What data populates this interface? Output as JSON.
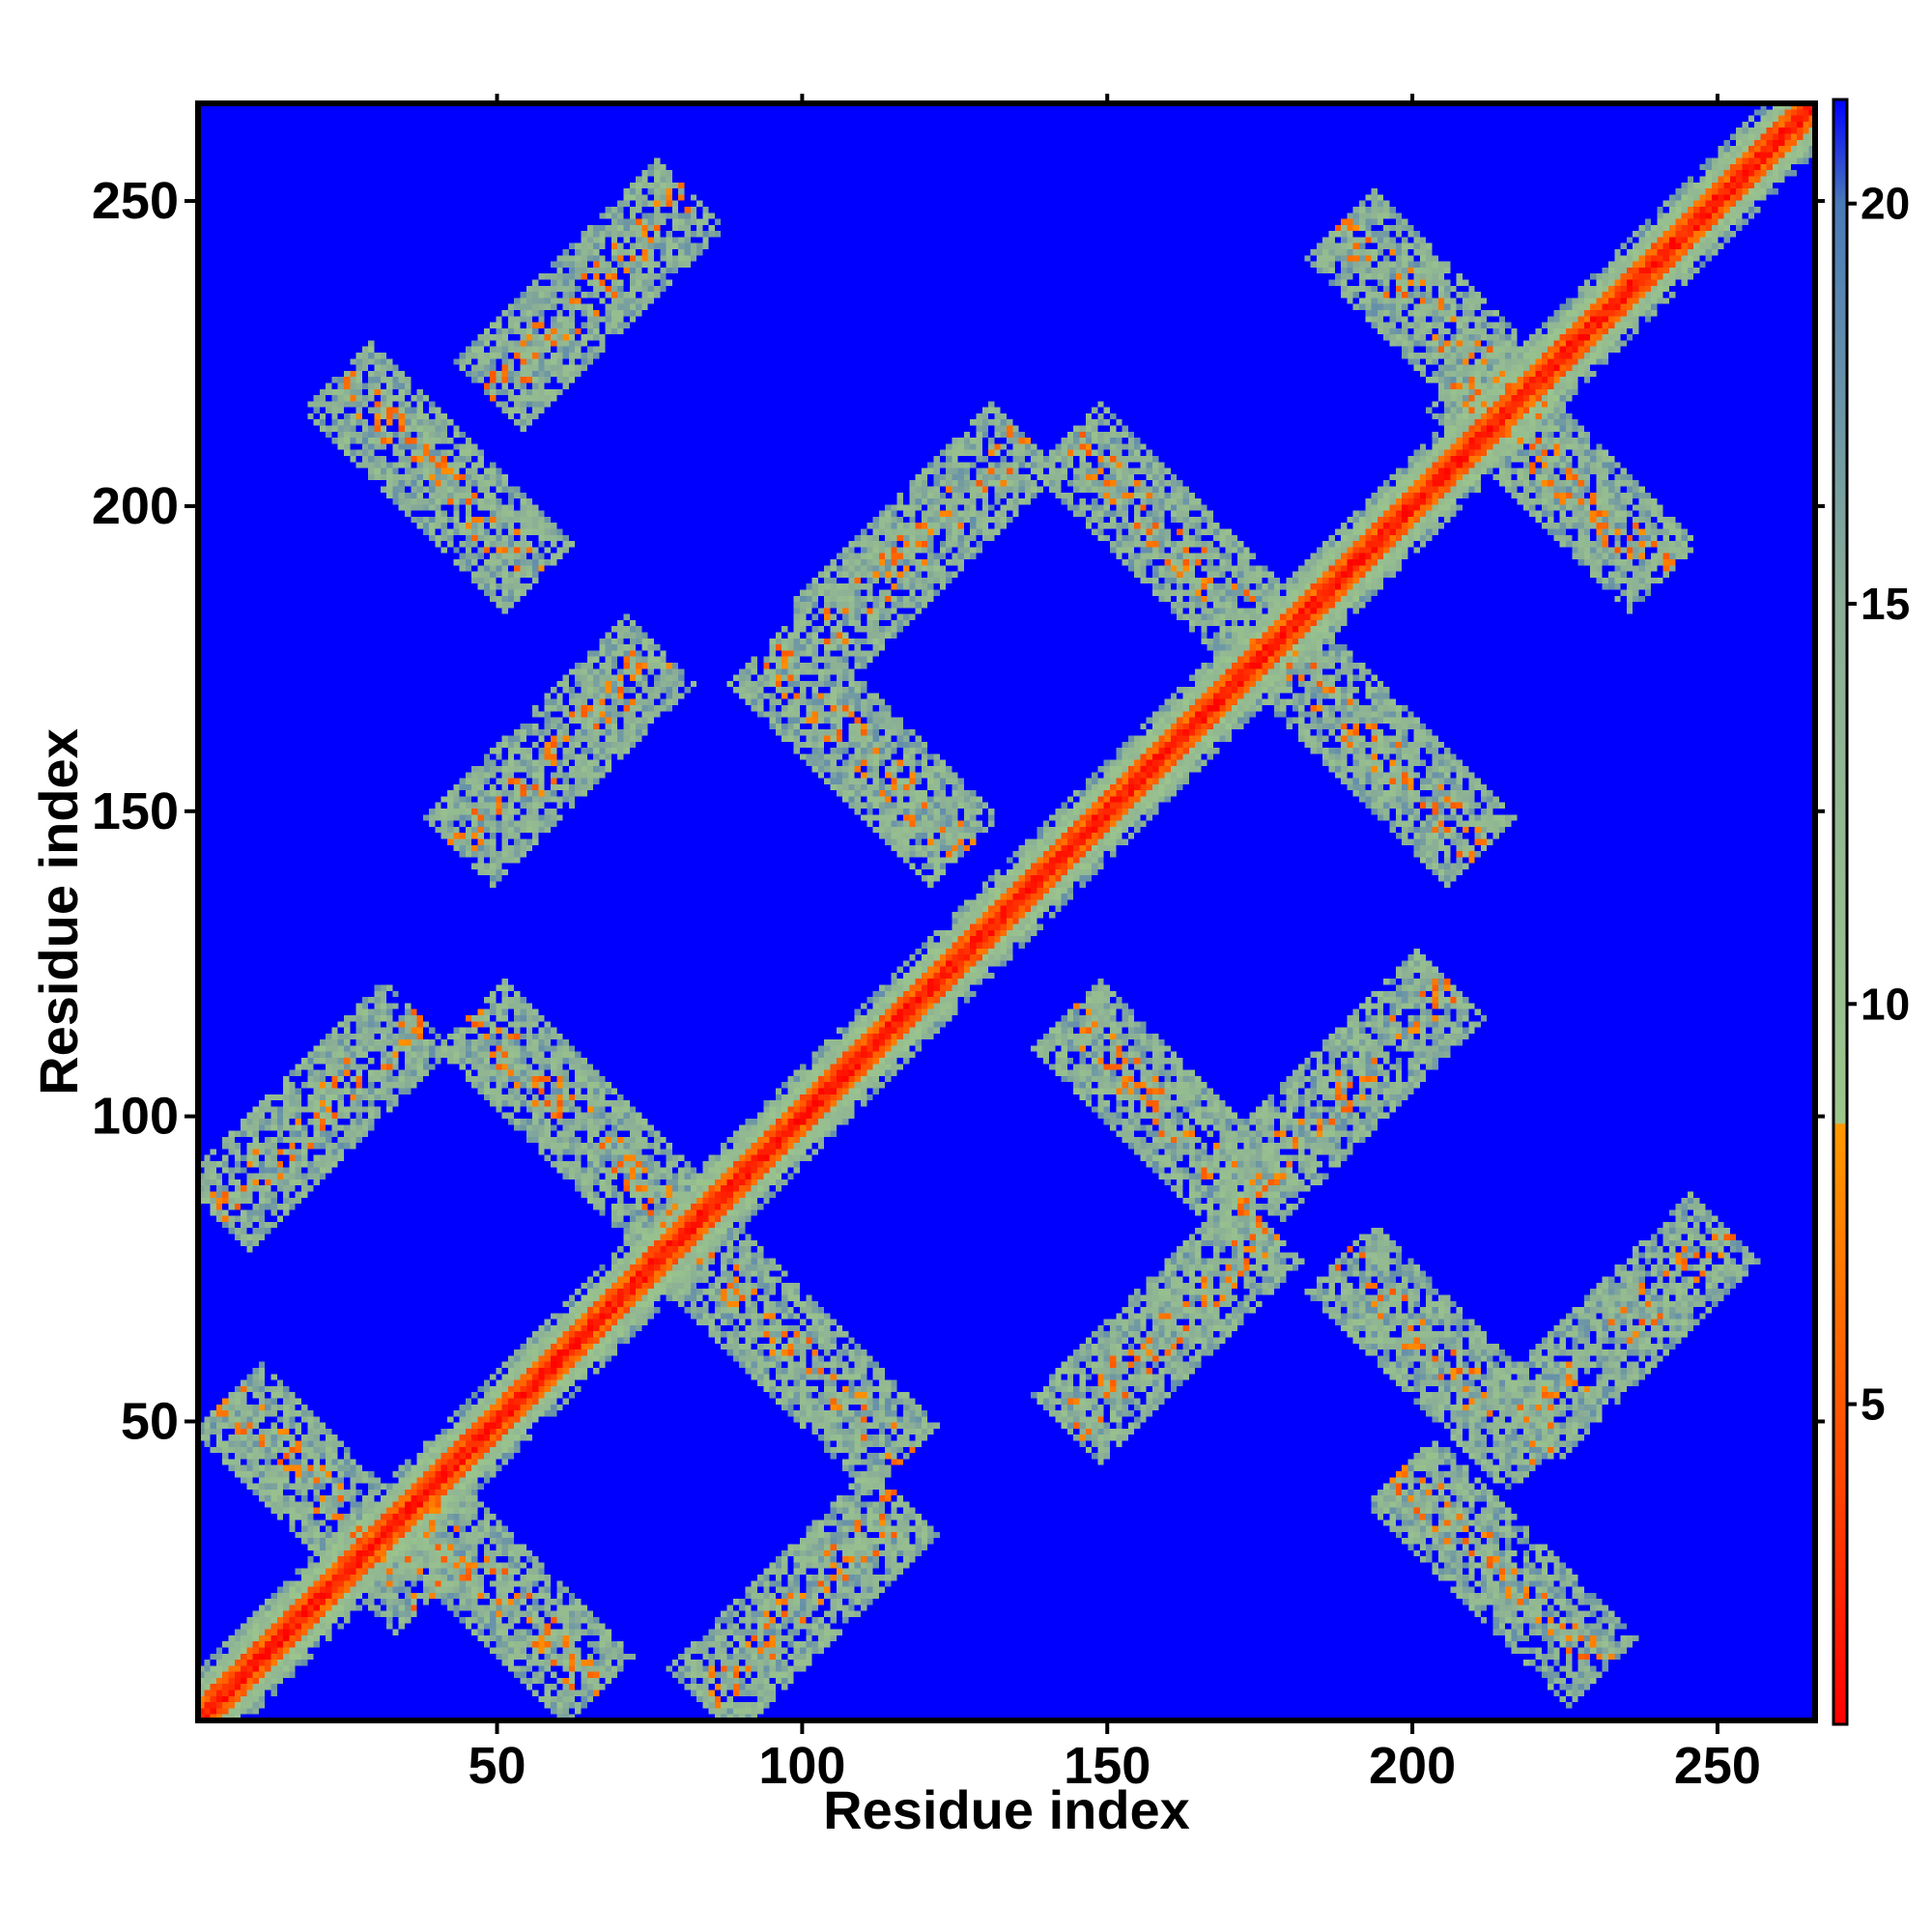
{
  "chart_data": {
    "type": "heatmap",
    "title": "",
    "xlabel": "Residue index",
    "ylabel": "Residue index",
    "xlim": [
      1,
      266
    ],
    "ylim": [
      1,
      266
    ],
    "xticks": [
      50,
      100,
      150,
      200,
      250
    ],
    "yticks": [
      50,
      100,
      150,
      200,
      250
    ],
    "colorbar": {
      "ticks": [
        5,
        10,
        15,
        20
      ],
      "range": [
        1,
        21.3
      ],
      "stops": [
        {
          "value": 1,
          "color": "#ff0000"
        },
        {
          "value": 4,
          "color": "#ff4500"
        },
        {
          "value": 8.5,
          "color": "#ff9900"
        },
        {
          "value": 8.51,
          "color": "#9cc68c"
        },
        {
          "value": 15,
          "color": "#8aae96"
        },
        {
          "value": 20,
          "color": "#4a7ab8"
        },
        {
          "value": 21.3,
          "color": "#0000ff"
        }
      ]
    },
    "background_value": 21.3,
    "background_color": "#0000ff",
    "description_of_features": {
      "diagonal": "continuous low-distance band along i=j",
      "contact_blocks": [
        {
          "center": [
            22,
            37
          ],
          "orientation": "anti"
        },
        {
          "center": [
            50,
            22
          ],
          "orientation": "anti"
        },
        {
          "center": [
            100,
            60
          ],
          "orientation": "anti"
        },
        {
          "center": [
            62,
            100
          ],
          "orientation": "anti"
        },
        {
          "center": [
            40,
            205
          ],
          "orientation": "anti"
        },
        {
          "center": [
            110,
            160
          ],
          "orientation": "anti"
        },
        {
          "center": [
            160,
            195
          ],
          "orientation": "anti"
        },
        {
          "center": [
            195,
            160
          ],
          "orientation": "anti"
        },
        {
          "center": [
            160,
            100
          ],
          "orientation": "anti"
        },
        {
          "center": [
            205,
            60
          ],
          "orientation": "anti"
        },
        {
          "center": [
            215,
            25
          ],
          "orientation": "anti"
        },
        {
          "center": [
            225,
            205
          ],
          "orientation": "anti"
        },
        {
          "center": [
            205,
            230
          ],
          "orientation": "anti"
        },
        {
          "center": [
            65,
            235
          ],
          "orientation": "parallel"
        },
        {
          "center": [
            20,
            100
          ],
          "orientation": "parallel"
        },
        {
          "center": [
            100,
            20
          ],
          "orientation": "parallel"
        },
        {
          "center": [
            160,
            65
          ],
          "orientation": "parallel"
        },
        {
          "center": [
            235,
            65
          ],
          "orientation": "parallel"
        },
        {
          "center": [
            60,
            160
          ],
          "orientation": "parallel"
        },
        {
          "center": [
            120,
            195
          ],
          "orientation": "parallel"
        },
        {
          "center": [
            190,
            105
          ],
          "orientation": "parallel"
        }
      ]
    }
  }
}
